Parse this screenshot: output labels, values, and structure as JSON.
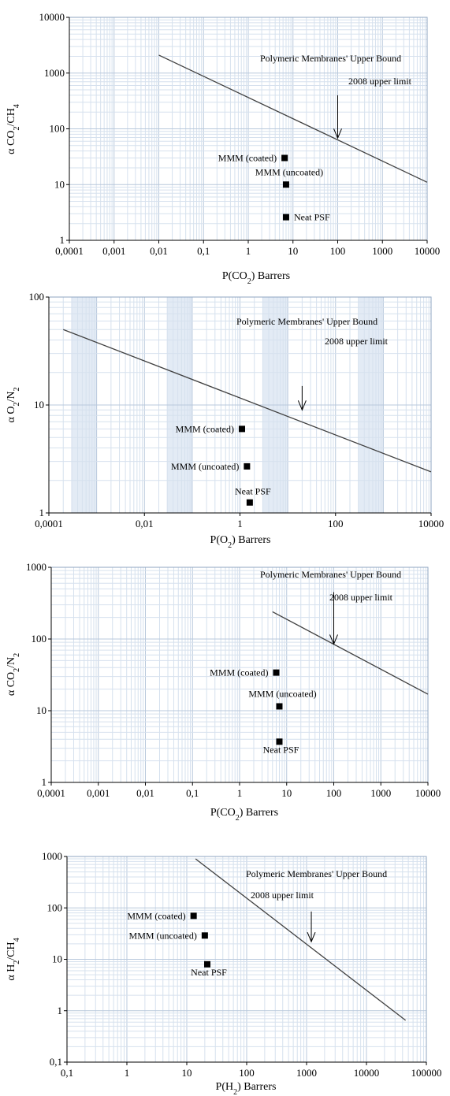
{
  "chart_data": [
    {
      "type": "scatter",
      "x_axis": {
        "parts": [
          "P(CO",
          "2",
          ") Barrers"
        ],
        "scale": "log",
        "range": [
          0.0001,
          10000
        ],
        "ticks": [
          "0,0001",
          "0,001",
          "0,01",
          "0,1",
          "1",
          "10",
          "100",
          "1000",
          "10000"
        ]
      },
      "y_axis": {
        "parts": [
          "α CO",
          "2",
          "/CH",
          "4",
          ""
        ],
        "scale": "log",
        "range": [
          1,
          10000
        ],
        "ticks": [
          "1",
          "10",
          "100",
          "1000",
          "10000"
        ]
      },
      "grid": true,
      "shaded_bands": false,
      "upper_bound_line": {
        "label": "Polymeric Membranes' Upper Bound",
        "points": [
          [
            0.01,
            2100
          ],
          [
            10000,
            11
          ]
        ]
      },
      "limit_annotation": {
        "label": "2008 upper limit",
        "arrow_x": 100,
        "arrow_from_y": 400,
        "arrow_to_y": 68
      },
      "points": [
        {
          "label": "MMM (coated)",
          "x": 6.5,
          "y": 30,
          "label_side": "left",
          "label_dy": 0
        },
        {
          "label": "MMM (uncoated)",
          "x": 7,
          "y": 10,
          "label_side": "above",
          "label_dy": -12
        },
        {
          "label": "Neat PSF",
          "x": 7,
          "y": 2.6,
          "label_side": "right",
          "label_dy": 0
        }
      ]
    },
    {
      "type": "scatter",
      "x_axis": {
        "parts": [
          "P(O",
          "2",
          ") Barrers"
        ],
        "scale": "log",
        "range": [
          0.0001,
          10000
        ],
        "ticks": [
          "0,0001",
          "0,01",
          "1",
          "100",
          "10000"
        ]
      },
      "y_axis": {
        "parts": [
          "α O",
          "2",
          "/N",
          "2",
          ""
        ],
        "scale": "log",
        "range": [
          1,
          100
        ],
        "ticks": [
          "1",
          "10",
          "100"
        ]
      },
      "grid": true,
      "shaded_bands": true,
      "upper_bound_line": {
        "label": "Polymeric Membranes' Upper Bound",
        "points": [
          [
            0.0002,
            50
          ],
          [
            10000,
            2.4
          ]
        ]
      },
      "limit_annotation": {
        "label": "2008 upper limit",
        "arrow_x": 20,
        "arrow_from_y": 15,
        "arrow_to_y": 9
      },
      "points": [
        {
          "label": "MMM (coated)",
          "x": 1.1,
          "y": 6,
          "label_side": "left",
          "label_dy": 0
        },
        {
          "label": "MMM (uncoated)",
          "x": 1.4,
          "y": 2.7,
          "label_side": "left",
          "label_dy": 0
        },
        {
          "label": "Neat PSF",
          "x": 1.6,
          "y": 1.25,
          "label_side": "above",
          "label_dy": -10
        }
      ]
    },
    {
      "type": "scatter",
      "x_axis": {
        "parts": [
          "P(CO",
          "2",
          ") Barrers"
        ],
        "scale": "log",
        "range": [
          0.0001,
          10000
        ],
        "ticks": [
          "0,0001",
          "0,001",
          "0,01",
          "0,1",
          "1",
          "10",
          "100",
          "1000",
          "10000"
        ]
      },
      "y_axis": {
        "parts": [
          "α CO",
          "2",
          "/N",
          "2",
          ""
        ],
        "scale": "log",
        "range": [
          1,
          1000
        ],
        "ticks": [
          "1",
          "10",
          "100",
          "1000"
        ]
      },
      "grid": true,
      "shaded_bands": false,
      "upper_bound_line": {
        "label": "Polymeric Membranes' Upper Bound",
        "points": [
          [
            5,
            240
          ],
          [
            10000,
            17
          ]
        ]
      },
      "limit_annotation": {
        "label": "2008 upper limit",
        "arrow_x": 100,
        "arrow_from_y": 450,
        "arrow_to_y": 85
      },
      "points": [
        {
          "label": "MMM (coated)",
          "x": 6,
          "y": 34,
          "label_side": "left",
          "label_dy": 0
        },
        {
          "label": "MMM (uncoated)",
          "x": 7,
          "y": 11.5,
          "label_side": "above",
          "label_dy": -12
        },
        {
          "label": "Neat PSF",
          "x": 7,
          "y": 3.7,
          "label_side": "below",
          "label_dy": 14
        }
      ]
    },
    {
      "type": "scatter",
      "x_axis": {
        "parts": [
          "P(H",
          "2",
          ") Barrers"
        ],
        "scale": "log",
        "range": [
          0.1,
          100000
        ],
        "ticks": [
          "0,1",
          "1",
          "10",
          "100",
          "1000",
          "10000",
          "100000"
        ]
      },
      "y_axis": {
        "parts": [
          "α H",
          "2",
          "/CH",
          "4",
          ""
        ],
        "scale": "log",
        "range": [
          0.1,
          1000
        ],
        "ticks": [
          "0,1",
          "1",
          "10",
          "100",
          "1000"
        ]
      },
      "grid": true,
      "shaded_bands": false,
      "upper_bound_line": {
        "label": "Polymeric Membranes' Upper Bound",
        "points": [
          [
            14,
            900
          ],
          [
            45000,
            0.65
          ]
        ]
      },
      "limit_annotation": {
        "label": "2008 upper limit",
        "arrow_x": 1200,
        "arrow_from_y": 85,
        "arrow_to_y": 22
      },
      "points": [
        {
          "label": "MMM (coated)",
          "x": 13,
          "y": 70,
          "label_side": "left",
          "label_dy": 0
        },
        {
          "label": "MMM (uncoated)",
          "x": 20,
          "y": 29,
          "label_side": "left",
          "label_dy": 0
        },
        {
          "label": "Neat PSF",
          "x": 22,
          "y": 8,
          "label_side": "below",
          "label_dy": 14
        }
      ]
    }
  ]
}
